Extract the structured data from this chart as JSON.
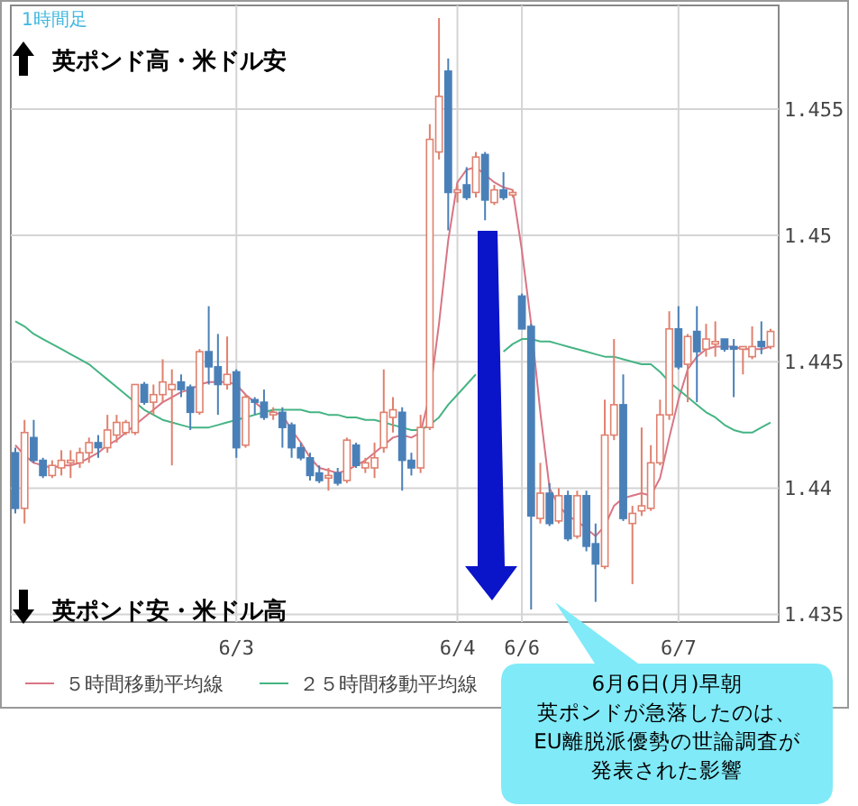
{
  "chart_data": {
    "type": "candlestick",
    "annotations": [
      "1時間足",
      "英ポンド高・米ドル安",
      "英ポンド安・米ドル高",
      "6月6日(月)早朝",
      "英ポンドが急落したのは、",
      "EU離脱派優勢の世論調査が",
      "発表された影響"
    ],
    "categories": [
      null,
      null,
      null,
      null,
      null,
      null,
      null,
      null,
      null,
      null,
      null,
      null,
      null,
      null,
      null,
      null,
      null,
      null,
      null,
      null,
      null,
      null,
      null,
      null,
      "6/3",
      null,
      null,
      null,
      null,
      null,
      null,
      null,
      null,
      null,
      null,
      null,
      null,
      null,
      null,
      null,
      null,
      null,
      null,
      null,
      null,
      null,
      null,
      null,
      "6/4",
      null,
      null,
      null,
      null,
      null,
      null,
      "6/6",
      null,
      null,
      null,
      null,
      null,
      null,
      null,
      null,
      null,
      null,
      null,
      null,
      null,
      null,
      null,
      null,
      "6/7",
      null,
      null,
      null,
      null,
      null,
      null,
      null,
      null,
      null,
      null
    ],
    "ohlc": [
      [
        1.4414,
        1.4416,
        1.439,
        1.4392
      ],
      [
        1.4392,
        1.4427,
        1.4386,
        1.4422
      ],
      [
        1.442,
        1.4427,
        1.441,
        1.4411
      ],
      [
        1.4411,
        1.4412,
        1.4404,
        1.4405
      ],
      [
        1.4405,
        1.4411,
        1.4404,
        1.4409
      ],
      [
        1.4408,
        1.4415,
        1.4405,
        1.4411
      ],
      [
        1.441,
        1.4415,
        1.4404,
        1.4411
      ],
      [
        1.441,
        1.4416,
        1.4408,
        1.4414
      ],
      [
        1.4414,
        1.442,
        1.441,
        1.4418
      ],
      [
        1.4418,
        1.4421,
        1.4412,
        1.4416
      ],
      [
        1.4416,
        1.4429,
        1.4414,
        1.4423
      ],
      [
        1.4421,
        1.4429,
        1.4418,
        1.4426
      ],
      [
        1.4422,
        1.4427,
        1.4421,
        1.4426
      ],
      [
        1.4422,
        1.4441,
        1.4421,
        1.4441
      ],
      [
        1.4441,
        1.4442,
        1.4433,
        1.4434
      ],
      [
        1.4434,
        1.4441,
        1.4429,
        1.4437
      ],
      [
        1.4437,
        1.4451,
        1.4434,
        1.4442
      ],
      [
        1.4439,
        1.4447,
        1.4409,
        1.4441
      ],
      [
        1.4442,
        1.4445,
        1.4436,
        1.4439
      ],
      [
        1.444,
        1.4441,
        1.4423,
        1.443
      ],
      [
        1.443,
        1.4455,
        1.4429,
        1.4454
      ],
      [
        1.4454,
        1.4472,
        1.4441,
        1.4448
      ],
      [
        1.4448,
        1.4461,
        1.4429,
        1.4441
      ],
      [
        1.4441,
        1.446,
        1.4439,
        1.4445
      ],
      [
        1.4446,
        1.4447,
        1.4412,
        1.4416
      ],
      [
        1.4417,
        1.4437,
        1.4416,
        1.4436
      ],
      [
        1.4435,
        1.4436,
        1.4429,
        1.4434
      ],
      [
        1.4434,
        1.4439,
        1.4427,
        1.4428
      ],
      [
        1.4429,
        1.4432,
        1.4427,
        1.443
      ],
      [
        1.443,
        1.4432,
        1.4416,
        1.4424
      ],
      [
        1.4425,
        1.4426,
        1.4412,
        1.4416
      ],
      [
        1.4416,
        1.4418,
        1.4411,
        1.4412
      ],
      [
        1.4412,
        1.4414,
        1.4403,
        1.4405
      ],
      [
        1.4406,
        1.4409,
        1.4402,
        1.4403
      ],
      [
        1.4404,
        1.4408,
        1.4399,
        1.4405
      ],
      [
        1.4406,
        1.4408,
        1.4401,
        1.4402
      ],
      [
        1.4403,
        1.442,
        1.4402,
        1.4419
      ],
      [
        1.4417,
        1.4418,
        1.4408,
        1.4409
      ],
      [
        1.4408,
        1.4412,
        1.4406,
        1.441
      ],
      [
        1.4408,
        1.4418,
        1.4404,
        1.4412
      ],
      [
        1.4416,
        1.4447,
        1.4414,
        1.443
      ],
      [
        1.4428,
        1.4436,
        1.4422,
        1.4431
      ],
      [
        1.443,
        1.4432,
        1.4399,
        1.4411
      ],
      [
        1.4411,
        1.4414,
        1.4405,
        1.4408
      ],
      [
        1.4408,
        1.4429,
        1.4406,
        1.4424
      ],
      [
        1.4424,
        1.4544,
        1.4423,
        1.4538
      ],
      [
        1.4533,
        1.4586,
        1.453,
        1.4555
      ],
      [
        1.4565,
        1.457,
        1.4502,
        1.4517
      ],
      [
        1.4517,
        1.452,
        1.4513,
        1.4518
      ],
      [
        1.452,
        1.4527,
        1.4514,
        1.4515
      ],
      [
        1.4517,
        1.4533,
        1.4515,
        1.4531
      ],
      [
        1.4532,
        1.4533,
        1.4506,
        1.4514
      ],
      [
        1.4513,
        1.452,
        1.4512,
        1.4518
      ],
      [
        1.4518,
        1.4525,
        1.4514,
        1.4515
      ],
      [
        1.4516,
        1.4518,
        1.4515,
        1.4517
      ],
      [
        1.4476,
        1.4477,
        1.4463,
        1.4463
      ],
      [
        1.4464,
        1.4465,
        1.4352,
        1.4389
      ],
      [
        1.4388,
        1.441,
        1.4386,
        1.4398
      ],
      [
        1.4398,
        1.4402,
        1.4385,
        1.4386
      ],
      [
        1.4387,
        1.44,
        1.4386,
        1.4397
      ],
      [
        1.4397,
        1.4399,
        1.4379,
        1.438
      ],
      [
        1.4381,
        1.4399,
        1.438,
        1.4397
      ],
      [
        1.4397,
        1.4399,
        1.4375,
        1.4377
      ],
      [
        1.4378,
        1.4386,
        1.4355,
        1.437
      ],
      [
        1.4369,
        1.4435,
        1.4368,
        1.4421
      ],
      [
        1.4421,
        1.4459,
        1.4419,
        1.4433
      ],
      [
        1.4433,
        1.4445,
        1.4387,
        1.4388
      ],
      [
        1.4386,
        1.4393,
        1.4362,
        1.439
      ],
      [
        1.4391,
        1.4424,
        1.4389,
        1.4393
      ],
      [
        1.4392,
        1.4417,
        1.4391,
        1.441
      ],
      [
        1.441,
        1.4435,
        1.4409,
        1.4429
      ],
      [
        1.4429,
        1.447,
        1.4427,
        1.4463
      ],
      [
        1.4463,
        1.4472,
        1.4447,
        1.4448
      ],
      [
        1.4449,
        1.4461,
        1.4434,
        1.446
      ],
      [
        1.4462,
        1.4472,
        1.4434,
        1.4454
      ],
      [
        1.4455,
        1.4465,
        1.4452,
        1.4459
      ],
      [
        1.4457,
        1.4466,
        1.4452,
        1.4458
      ],
      [
        1.4459,
        1.4459,
        1.4454,
        1.4455
      ],
      [
        1.4456,
        1.4459,
        1.4436,
        1.4455
      ],
      [
        1.4455,
        1.4456,
        1.4445,
        1.4456
      ],
      [
        1.4452,
        1.4464,
        1.4451,
        1.4456
      ],
      [
        1.4458,
        1.4466,
        1.4453,
        1.4456
      ],
      [
        1.4456,
        1.4463,
        1.4455,
        1.4462
      ]
    ],
    "series": [
      {
        "type": "line",
        "name": "５時間移動平均線",
        "color": "#d87584",
        "values": [
          1.4417,
          1.4413,
          1.441,
          1.4409,
          1.4408,
          1.4409,
          1.4409,
          1.441,
          1.4412,
          1.4414,
          1.4417,
          1.4419,
          1.4422,
          1.4425,
          1.4428,
          1.4431,
          1.4434,
          1.4436,
          1.4438,
          1.4439,
          1.4441,
          1.4442,
          1.4442,
          1.4442,
          1.4441,
          1.4437,
          1.4434,
          1.4431,
          1.443,
          1.4429,
          1.4423,
          1.4418,
          1.4412,
          1.4408,
          1.4407,
          1.4406,
          1.4407,
          1.4409,
          1.4411,
          1.4414,
          1.4417,
          1.442,
          1.4421,
          1.442,
          1.4422,
          1.4437,
          1.4465,
          1.4498,
          1.4521,
          1.4526,
          1.4527,
          1.4524,
          1.4521,
          1.4519,
          1.4518,
          1.4494,
          1.4465,
          1.443,
          1.44,
          1.4393,
          1.4389,
          1.4387,
          1.4384,
          1.4381,
          1.4385,
          1.4393,
          1.4396,
          1.4397,
          1.4398,
          1.4397,
          1.4404,
          1.442,
          1.4435,
          1.4447,
          1.4452,
          1.4455,
          1.4456,
          1.4456,
          1.4456,
          1.4455,
          1.4455,
          1.4455,
          1.4456
        ]
      },
      {
        "type": "line",
        "name": "２５時間移動平均線",
        "color": "#45b484",
        "values": [
          1.4466,
          1.4464,
          1.4461,
          1.4459,
          1.4457,
          1.4455,
          1.4453,
          1.4451,
          1.4449,
          1.4446,
          1.4443,
          1.444,
          1.4437,
          1.4434,
          1.4431,
          1.4429,
          1.4427,
          1.4426,
          1.4425,
          1.4424,
          1.4424,
          1.4424,
          1.4425,
          1.4426,
          1.4427,
          1.4428,
          1.4429,
          1.443,
          1.4431,
          1.4431,
          1.4431,
          1.4431,
          1.443,
          1.443,
          1.4429,
          1.4429,
          1.4428,
          1.4428,
          1.4427,
          1.4427,
          1.4426,
          1.4425,
          1.4424,
          1.4423,
          1.4423,
          1.4425,
          1.4428,
          1.4433,
          1.4437,
          1.4441,
          1.4445,
          null,
          null,
          1.4454,
          1.4457,
          1.4459,
          1.4459,
          1.4458,
          1.4458,
          1.4457,
          1.4456,
          1.4455,
          1.4454,
          1.4453,
          1.4452,
          1.4452,
          1.4451,
          1.445,
          1.4449,
          1.4449,
          1.4446,
          1.4442,
          1.4439,
          1.4436,
          1.4433,
          1.443,
          1.4428,
          1.4425,
          1.4423,
          1.4422,
          1.4422,
          1.4424,
          1.4426
        ]
      }
    ],
    "ylim": [
      1.4347,
      1.4591
    ],
    "yticks": [
      {
        "value": 1.435,
        "label": "1.435"
      },
      {
        "value": 1.44,
        "label": "1.44"
      },
      {
        "value": 1.445,
        "label": "1.445"
      },
      {
        "value": 1.45,
        "label": "1.45"
      },
      {
        "value": 1.455,
        "label": "1.455"
      }
    ],
    "grid": true,
    "legend": "bottom"
  }
}
